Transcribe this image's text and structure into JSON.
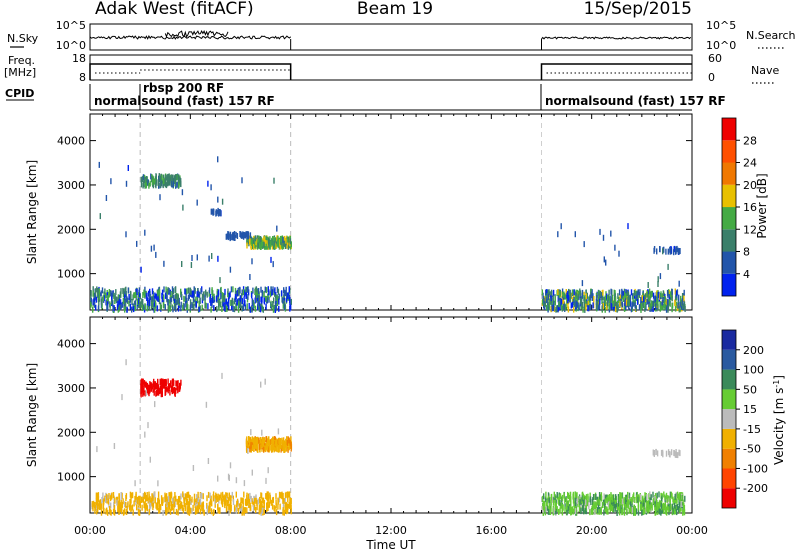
{
  "header": {
    "station": "Adak West (fitACF)",
    "beam": "Beam 19",
    "date": "15/Sep/2015"
  },
  "noise": {
    "left_label": "N.Sky",
    "right_label": "N.Search",
    "tick_top": "10^5",
    "tick_bottom": "10^0"
  },
  "freq": {
    "label_line1": "Freq.",
    "label_line2": "[MHz]",
    "tick_top": "18",
    "tick_bottom": "8",
    "nave_label": "Nave",
    "nave_top": "60",
    "nave_bottom": "0"
  },
  "cpid": {
    "label": "CPID",
    "segments": [
      "normalsound (fast) 157 RF",
      "rbsp 200 RF",
      "normalsound (fast) 157 RF"
    ]
  },
  "x_axis": {
    "label": "Time UT",
    "ticks": [
      "00:00",
      "04:00",
      "08:00",
      "12:00",
      "16:00",
      "20:00",
      "00:00"
    ]
  },
  "y_axis": {
    "label": "Slant Range [km]",
    "ticks": [
      "1000",
      "2000",
      "3000",
      "4000"
    ]
  },
  "power_scale": {
    "title": "Power [dB]",
    "ticks": [
      "4",
      "8",
      "12",
      "16",
      "20",
      "24",
      "28"
    ],
    "colors": [
      "#0022ee",
      "#2255aa",
      "#3a7f6a",
      "#44aa44",
      "#e8c000",
      "#f07800",
      "#ff5000",
      "#ee0000"
    ]
  },
  "velocity_scale": {
    "title": "Velocity [m s^-1]",
    "ticks": [
      "200",
      "100",
      "50",
      "15",
      "-15",
      "-50",
      "-100",
      "-200"
    ],
    "colors": [
      "#1a2aa0",
      "#2a5aa0",
      "#3a8a5a",
      "#66cc33",
      "#bbbbbb",
      "#f0b000",
      "#f08000",
      "#ff4400",
      "#ee0000"
    ]
  },
  "chart_data": [
    {
      "type": "heatmap",
      "title": "Power [dB]",
      "xlabel": "Time UT",
      "ylabel": "Slant Range [km]",
      "x_range_hours": [
        0,
        24
      ],
      "ylim": [
        180,
        4600
      ],
      "clim": [
        0,
        32
      ],
      "patches": [
        {
          "t0": 2.0,
          "t1": 3.6,
          "r0": 2980,
          "r1": 3200,
          "value": 10
        },
        {
          "t0": 6.2,
          "t1": 8.0,
          "r0": 1600,
          "r1": 1800,
          "value": 14
        },
        {
          "t0": 5.4,
          "t1": 6.4,
          "r0": 1800,
          "r1": 1900,
          "value": 6
        },
        {
          "t0": 4.8,
          "t1": 5.2,
          "r0": 2350,
          "r1": 2420,
          "value": 5
        },
        {
          "t0": 0.0,
          "t1": 8.0,
          "r0": 180,
          "r1": 650,
          "value": 8
        },
        {
          "t0": 18.0,
          "t1": 23.7,
          "r0": 180,
          "r1": 600,
          "value": 10
        },
        {
          "t0": 22.4,
          "t1": 23.5,
          "r0": 1480,
          "r1": 1560,
          "value": 5
        }
      ]
    },
    {
      "type": "heatmap",
      "title": "Velocity [m s^-1]",
      "xlabel": "Time UT",
      "ylabel": "Slant Range [km]",
      "x_range_hours": [
        0,
        24
      ],
      "ylim": [
        180,
        4600
      ],
      "clim": [
        -250,
        250
      ],
      "patches": [
        {
          "t0": 2.0,
          "t1": 3.6,
          "r0": 2850,
          "r1": 3150,
          "value": -220
        },
        {
          "t0": 6.2,
          "t1": 8.0,
          "r0": 1600,
          "r1": 1850,
          "value": -40
        },
        {
          "t0": 0.0,
          "t1": 8.0,
          "r0": 180,
          "r1": 600,
          "value": -30
        },
        {
          "t0": 18.0,
          "t1": 23.7,
          "r0": 180,
          "r1": 600,
          "value": 40
        },
        {
          "t0": 22.4,
          "t1": 23.5,
          "r0": 1480,
          "r1": 1560,
          "value": 0
        }
      ]
    }
  ]
}
